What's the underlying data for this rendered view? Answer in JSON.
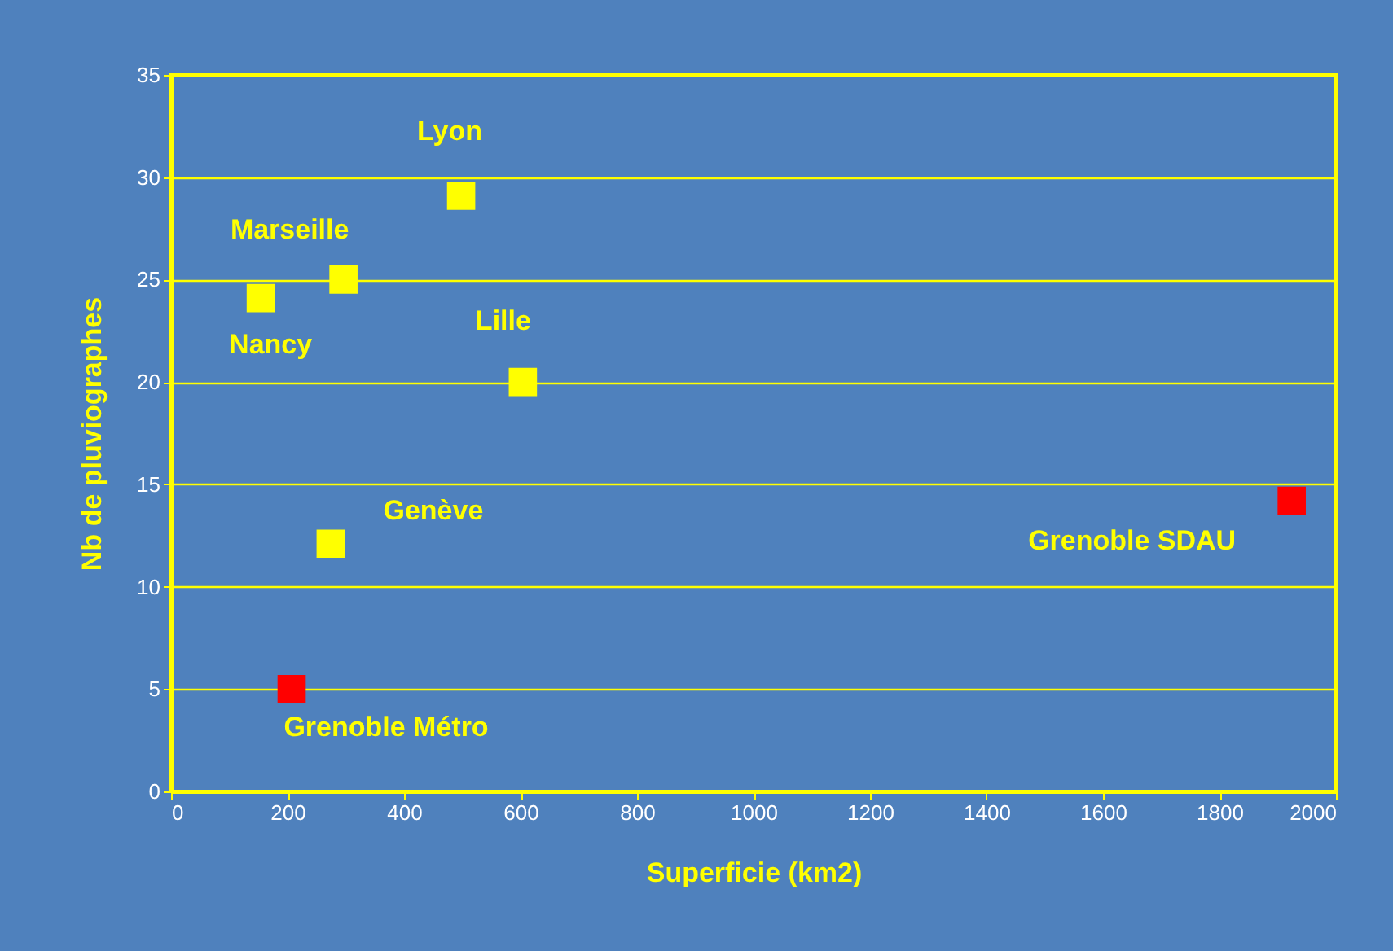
{
  "chart_data": {
    "type": "scatter",
    "xlabel": "Superficie (km2)",
    "ylabel": "Nb de pluviographes",
    "x": [
      498,
      296,
      154,
      604,
      274,
      207,
      1924
    ],
    "values": [
      29.1,
      25,
      24.1,
      20,
      12.1,
      5,
      14.2
    ],
    "colors": [
      "#ffff00",
      "#ffff00",
      "#ffff00",
      "#ffff00",
      "#ffff00",
      "#ff0000",
      "#ff0000"
    ],
    "annotations": [
      {
        "text": "Lyon",
        "x": 498,
        "y": 29.1
      },
      {
        "text": "Marseille",
        "x": 296,
        "y": 25
      },
      {
        "text": "Nancy",
        "x": 154,
        "y": 24.1
      },
      {
        "text": "Lille",
        "x": 604,
        "y": 20
      },
      {
        "text": "Genève",
        "x": 274,
        "y": 12.1
      },
      {
        "text": "Grenoble Métro",
        "x": 207,
        "y": 5
      },
      {
        "text": "Grenoble SDAU",
        "x": 1924,
        "y": 14.2
      }
    ],
    "xlim": [
      0,
      2000
    ],
    "xticks": [
      0,
      200,
      400,
      600,
      800,
      1000,
      1200,
      1400,
      1600,
      1800,
      2000
    ],
    "ylim": [
      0,
      35
    ],
    "yticks": [
      0,
      5,
      10,
      15,
      20,
      25,
      30,
      35
    ],
    "grid": "y",
    "marker": "square"
  }
}
